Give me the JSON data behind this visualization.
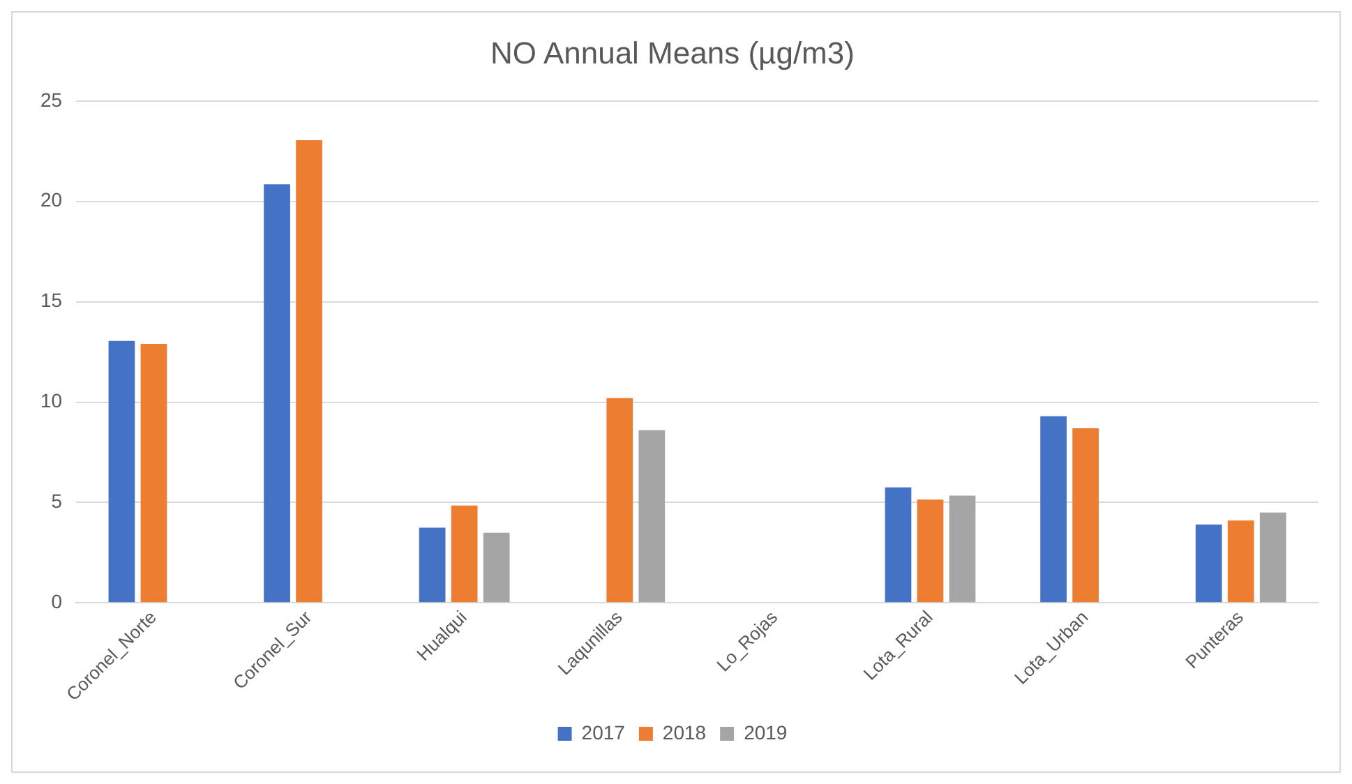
{
  "chart_data": {
    "type": "bar",
    "title": "NO Annual Means (µg/m3)",
    "categories": [
      "Coronel_Norte",
      "Coronel_Sur",
      "Hualqui",
      "Laqunillas",
      "Lo_Rojas",
      "Lota_Rural",
      "Lota_Urban",
      "Punteras"
    ],
    "series": [
      {
        "name": "2017",
        "color": "#4472c4",
        "values": [
          13.05,
          20.85,
          3.75,
          null,
          null,
          5.75,
          9.3,
          3.9
        ]
      },
      {
        "name": "2018",
        "color": "#ed7d31",
        "values": [
          12.9,
          23.05,
          4.85,
          10.2,
          null,
          5.15,
          8.7,
          4.1
        ]
      },
      {
        "name": "2019",
        "color": "#a5a5a5",
        "values": [
          null,
          null,
          3.5,
          8.6,
          null,
          5.35,
          null,
          4.5
        ]
      }
    ],
    "ylim": [
      0,
      25
    ],
    "yticks": [
      0,
      5,
      10,
      15,
      20,
      25
    ],
    "grid": "y",
    "legend": "bottom"
  }
}
